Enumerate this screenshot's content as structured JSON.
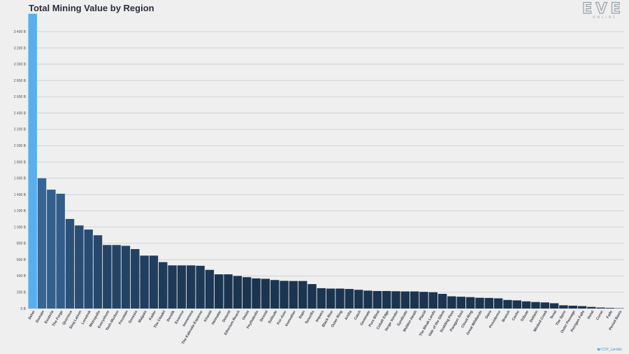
{
  "brand": {
    "logo_text": "EVE",
    "logo_sub": "ONLINE"
  },
  "credit": "🐦CCP_Larrikin",
  "chart_data": {
    "type": "bar",
    "title": "Total Mining Value by Region",
    "xlabel": "",
    "ylabel": "",
    "ylim": [
      0,
      3600
    ],
    "yticks": [
      0,
      200,
      400,
      600,
      800,
      1000,
      1200,
      1400,
      1600,
      1800,
      2000,
      2200,
      2400,
      2600,
      2800,
      3000,
      3200,
      3400
    ],
    "ytick_labels": [
      "0 B",
      "200 B",
      "400 B",
      "600 B",
      "800 B",
      "1 000 B",
      "1 200 B",
      "1 400 B",
      "1 600 B",
      "1 800 B",
      "2 000 B",
      "2 200 B",
      "2 400 B",
      "2 600 B",
      "2 800 B",
      "3 000 B",
      "3 200 B",
      "3 400 B"
    ],
    "grid": true,
    "colors": {
      "highlight": "#5aaeec",
      "bar_dark": "#1b3450",
      "bar_light": "#33608e",
      "grid": "#c9cbcf",
      "background": "#efeff0"
    },
    "categories": [
      "Delve",
      "Domain",
      "Esoteria",
      "The Forge",
      "Querious",
      "Sinq Laison",
      "Lonetrek",
      "Metropolis",
      "Everyshore",
      "Tash-Murkon",
      "Fountain",
      "Genesis",
      "Malpais",
      "Kador",
      "The Citadel",
      "Derelik",
      "Essence",
      "Immensea",
      "The Kalevala Expanse",
      "Khanid",
      "Heimatar",
      "Detorid",
      "Etherium Reach",
      "Omist",
      "Feythabolis",
      "Devoid",
      "Solitude",
      "Kor-Azor",
      "Insmother",
      "Stain",
      "Tenerifis",
      "Impass",
      "Black Rise",
      "Outer Ring",
      "Aridia",
      "Catch",
      "Geminate",
      "Pure Blind",
      "Cobalt Edge",
      "Verge Vendor",
      "Syndicate",
      "Molden Heath",
      "Placid",
      "The Bleak Lands",
      "Vale of the Silent",
      "Scalding Pass",
      "Paragon Soul",
      "Cloud Ring",
      "Great Wildlands",
      "Oasa",
      "Providence",
      "Branch",
      "Cache",
      "Tribute",
      "Deklein",
      "Wicked Creek",
      "Tenal",
      "The Spire",
      "Outer Passage",
      "Perrigen Falls",
      "Venal",
      "Curse",
      "Fade",
      "Period Basis"
    ],
    "values": [
      3620,
      1600,
      1460,
      1410,
      1100,
      1020,
      970,
      900,
      780,
      780,
      770,
      730,
      650,
      650,
      570,
      530,
      530,
      530,
      525,
      475,
      420,
      420,
      400,
      385,
      370,
      365,
      350,
      340,
      338,
      338,
      300,
      250,
      245,
      245,
      240,
      230,
      220,
      215,
      215,
      212,
      210,
      210,
      205,
      200,
      180,
      150,
      145,
      140,
      132,
      130,
      125,
      105,
      100,
      88,
      80,
      75,
      65,
      40,
      35,
      30,
      20,
      12,
      8,
      4
    ]
  }
}
